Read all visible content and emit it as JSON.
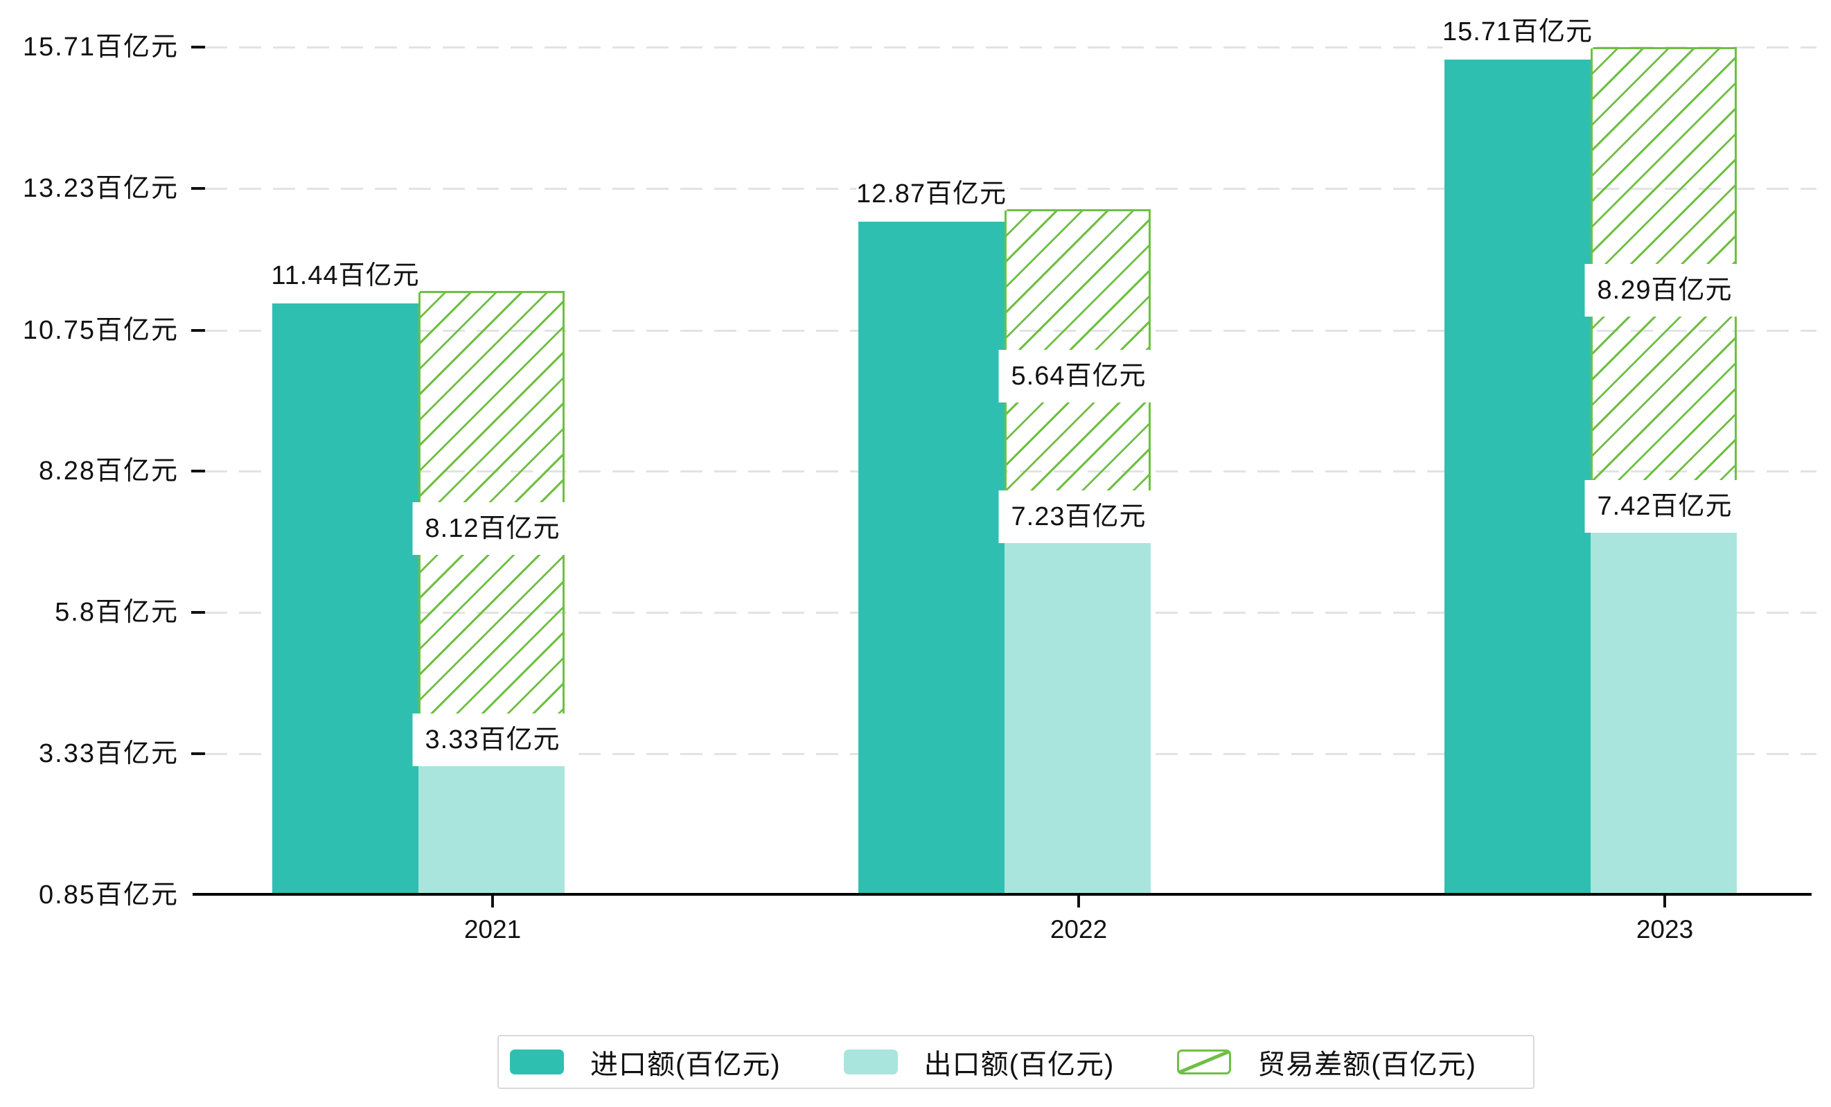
{
  "chart_data": {
    "type": "bar",
    "categories": [
      "2021",
      "2022",
      "2023"
    ],
    "series": [
      {
        "name": "进口额(百亿元)",
        "values": [
          11.44,
          12.87,
          15.71
        ],
        "color": "#2fbfb1",
        "role": "import"
      },
      {
        "name": "出口额(百亿元)",
        "values": [
          3.33,
          7.23,
          7.42
        ],
        "color": "#a9e5dd",
        "role": "export"
      },
      {
        "name": "贸易差额(百亿元)",
        "values": [
          8.12,
          5.64,
          8.29
        ],
        "color": "#6fbf44",
        "role": "balance",
        "style": "hatched",
        "note": "floating bar from export top to import top"
      }
    ],
    "bar_labels": {
      "import": [
        "11.44百亿元",
        "12.87百亿元",
        "15.71百亿元"
      ],
      "export": [
        "3.33百亿元",
        "7.23百亿元",
        "7.42百亿元"
      ],
      "balance": [
        "8.12百亿元",
        "5.64百亿元",
        "8.29百亿元"
      ]
    },
    "y_axis": {
      "tick_labels": [
        "15.71百亿元",
        "13.23百亿元",
        "10.75百亿元",
        "8.28百亿元",
        "5.8百亿元",
        "3.33百亿元",
        "0.85百亿元"
      ],
      "tick_values": [
        15.71,
        13.23,
        10.75,
        8.28,
        5.8,
        3.33,
        0.85
      ],
      "min": 0.85,
      "max": 15.71
    },
    "x_axis": {
      "labels": [
        "2021",
        "2022",
        "2023"
      ]
    },
    "legend": [
      {
        "label": "进口额(百亿元)",
        "swatch": "solid-teal"
      },
      {
        "label": "出口额(百亿元)",
        "swatch": "solid-light-teal"
      },
      {
        "label": "贸易差额(百亿元)",
        "swatch": "hatched-green"
      }
    ],
    "grid": {
      "horizontal_dashed": true
    },
    "colors": {
      "import": "#2fbfb1",
      "export": "#a9e5dd",
      "balance": "#6fbf44",
      "gridline": "#e3e3e3",
      "axis": "#000000",
      "text": "#111111",
      "legend_border": "#d9d9d9",
      "label_bg": "#ffffff"
    }
  }
}
